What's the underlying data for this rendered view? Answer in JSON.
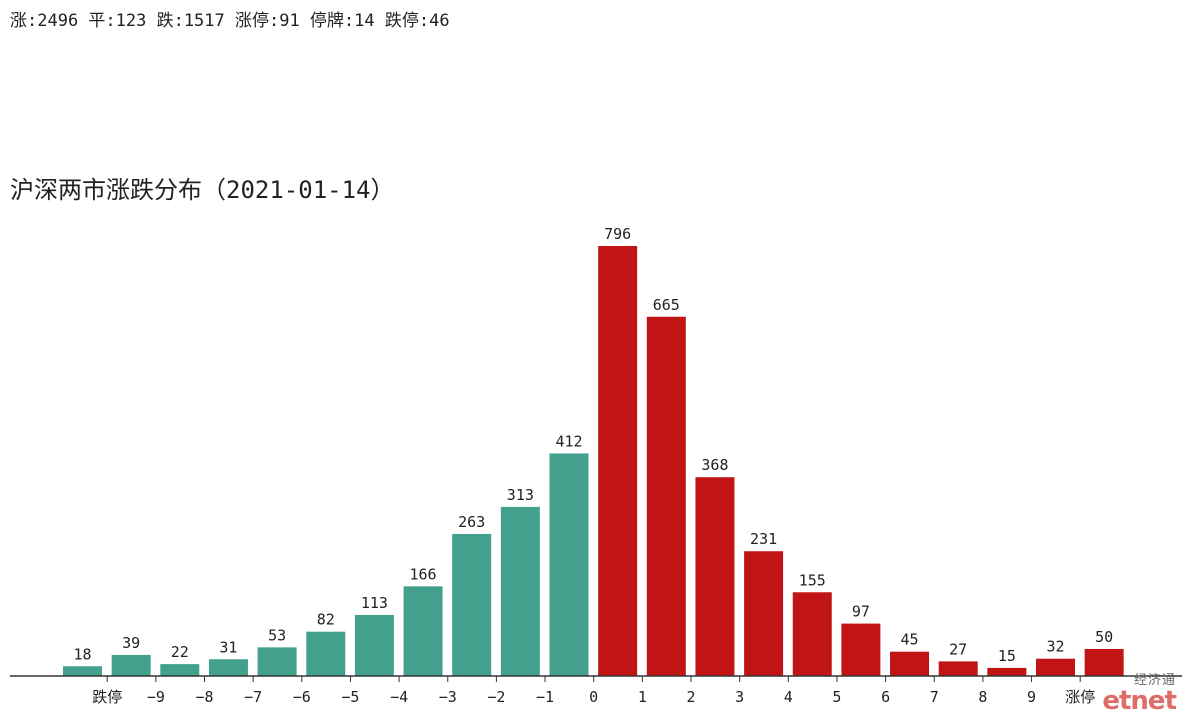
{
  "summary": "涨:2496 平:123 跌:1517 涨停:91 停牌:14 跌停:46",
  "colors": {
    "down": "#43a08c",
    "up": "#c11414",
    "axis": "#333333",
    "text": "#222222"
  },
  "logo": {
    "sub": "经济通",
    "main": "etnet"
  },
  "chart_data": {
    "type": "bar",
    "title": "沪深两市涨跌分布（2021-01-14）",
    "bars": [
      {
        "value": 18,
        "direction": "down"
      },
      {
        "value": 39,
        "direction": "down"
      },
      {
        "value": 22,
        "direction": "down"
      },
      {
        "value": 31,
        "direction": "down"
      },
      {
        "value": 53,
        "direction": "down"
      },
      {
        "value": 82,
        "direction": "down"
      },
      {
        "value": 113,
        "direction": "down"
      },
      {
        "value": 166,
        "direction": "down"
      },
      {
        "value": 263,
        "direction": "down"
      },
      {
        "value": 313,
        "direction": "down"
      },
      {
        "value": 412,
        "direction": "down"
      },
      {
        "value": 796,
        "direction": "up"
      },
      {
        "value": 665,
        "direction": "up"
      },
      {
        "value": 368,
        "direction": "up"
      },
      {
        "value": 231,
        "direction": "up"
      },
      {
        "value": 155,
        "direction": "up"
      },
      {
        "value": 97,
        "direction": "up"
      },
      {
        "value": 45,
        "direction": "up"
      },
      {
        "value": 27,
        "direction": "up"
      },
      {
        "value": 15,
        "direction": "up"
      },
      {
        "value": 32,
        "direction": "up"
      },
      {
        "value": 50,
        "direction": "up"
      }
    ],
    "x_ticks": [
      "跌停",
      "−9",
      "−8",
      "−7",
      "−6",
      "−5",
      "−4",
      "−3",
      "−2",
      "−1",
      "0",
      "1",
      "2",
      "3",
      "4",
      "5",
      "6",
      "7",
      "8",
      "9",
      "涨停"
    ],
    "xlabel": "",
    "ylabel": "",
    "ylim": [
      0,
      796
    ],
    "grid": false
  }
}
